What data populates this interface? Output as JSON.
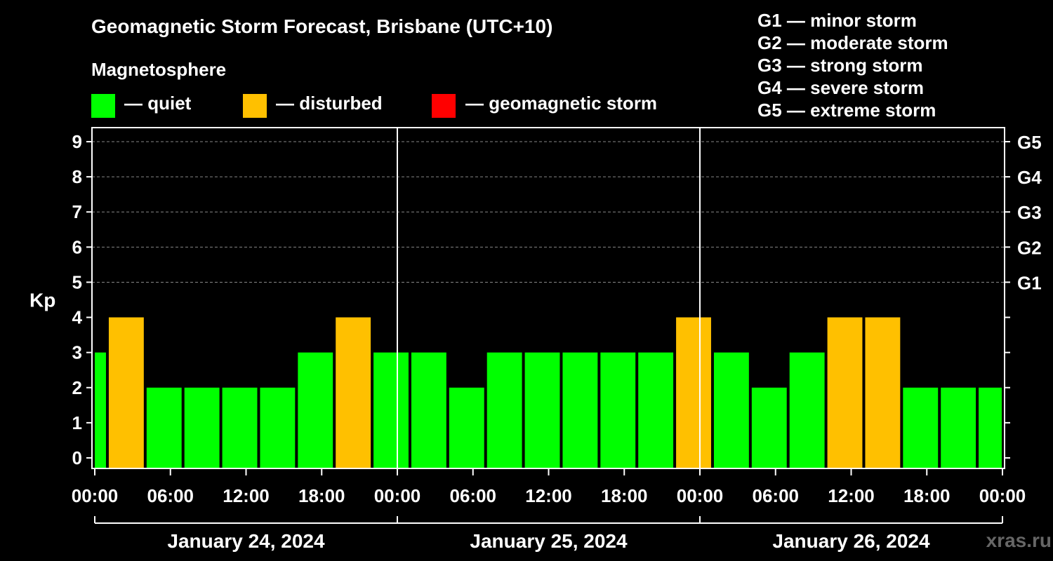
{
  "title": "Geomagnetic Storm Forecast, Brisbane (UTC+10)",
  "subtitle": "Magnetosphere",
  "legend": [
    {
      "label": "— quiet",
      "color": "#00ff00"
    },
    {
      "label": "— disturbed",
      "color": "#ffc000"
    },
    {
      "label": "— geomagnetic storm",
      "color": "#ff0000"
    }
  ],
  "storm_legend": [
    "G1 — minor storm",
    "G2 — moderate storm",
    "G3 — strong storm",
    "G4 — severe storm",
    "G5 — extreme storm"
  ],
  "watermark": "xras.ru",
  "colors": {
    "quiet": "#00ff00",
    "disturbed": "#ffc000",
    "storm": "#ff0000",
    "background": "#000000",
    "axis": "#ffffff",
    "grid": "#888888"
  },
  "chart_data": {
    "type": "bar",
    "title": "Geomagnetic Storm Forecast, Brisbane (UTC+10)",
    "ylabel": "Kp",
    "ylim": [
      -0.3,
      9.4
    ],
    "yticks": [
      0,
      1,
      2,
      3,
      4,
      5,
      6,
      7,
      8,
      9
    ],
    "right_axis_labels": [
      {
        "value": 5,
        "label": "G1"
      },
      {
        "value": 6,
        "label": "G2"
      },
      {
        "value": 7,
        "label": "G3"
      },
      {
        "value": 8,
        "label": "G4"
      },
      {
        "value": 9,
        "label": "G5"
      }
    ],
    "grid": "dashed horizontal at Kp 5-9",
    "x_range_hours": [
      0,
      72
    ],
    "x_ticks": [
      {
        "hour": 0,
        "label": "00:00"
      },
      {
        "hour": 6,
        "label": "06:00"
      },
      {
        "hour": 12,
        "label": "12:00"
      },
      {
        "hour": 18,
        "label": "18:00"
      },
      {
        "hour": 24,
        "label": "00:00"
      },
      {
        "hour": 30,
        "label": "06:00"
      },
      {
        "hour": 36,
        "label": "12:00"
      },
      {
        "hour": 42,
        "label": "18:00"
      },
      {
        "hour": 48,
        "label": "00:00"
      },
      {
        "hour": 54,
        "label": "06:00"
      },
      {
        "hour": 60,
        "label": "12:00"
      },
      {
        "hour": 66,
        "label": "18:00"
      },
      {
        "hour": 72,
        "label": "00:00"
      }
    ],
    "days": [
      {
        "label": "January 24, 2024",
        "start_hour": 0,
        "end_hour": 24
      },
      {
        "label": "January 25, 2024",
        "start_hour": 24,
        "end_hour": 48
      },
      {
        "label": "January 26, 2024",
        "start_hour": 48,
        "end_hour": 72
      }
    ],
    "bars": [
      {
        "start_hour": -2,
        "end_hour": 1,
        "kp": 3,
        "level": "quiet"
      },
      {
        "start_hour": 1,
        "end_hour": 4,
        "kp": 4,
        "level": "disturbed"
      },
      {
        "start_hour": 4,
        "end_hour": 7,
        "kp": 2,
        "level": "quiet"
      },
      {
        "start_hour": 7,
        "end_hour": 10,
        "kp": 2,
        "level": "quiet"
      },
      {
        "start_hour": 10,
        "end_hour": 13,
        "kp": 2,
        "level": "quiet"
      },
      {
        "start_hour": 13,
        "end_hour": 16,
        "kp": 2,
        "level": "quiet"
      },
      {
        "start_hour": 16,
        "end_hour": 19,
        "kp": 3,
        "level": "quiet"
      },
      {
        "start_hour": 19,
        "end_hour": 22,
        "kp": 4,
        "level": "disturbed"
      },
      {
        "start_hour": 22,
        "end_hour": 25,
        "kp": 3,
        "level": "quiet"
      },
      {
        "start_hour": 25,
        "end_hour": 28,
        "kp": 3,
        "level": "quiet"
      },
      {
        "start_hour": 28,
        "end_hour": 31,
        "kp": 2,
        "level": "quiet"
      },
      {
        "start_hour": 31,
        "end_hour": 34,
        "kp": 3,
        "level": "quiet"
      },
      {
        "start_hour": 34,
        "end_hour": 37,
        "kp": 3,
        "level": "quiet"
      },
      {
        "start_hour": 37,
        "end_hour": 40,
        "kp": 3,
        "level": "quiet"
      },
      {
        "start_hour": 40,
        "end_hour": 43,
        "kp": 3,
        "level": "quiet"
      },
      {
        "start_hour": 43,
        "end_hour": 46,
        "kp": 3,
        "level": "quiet"
      },
      {
        "start_hour": 46,
        "end_hour": 49,
        "kp": 4,
        "level": "disturbed"
      },
      {
        "start_hour": 49,
        "end_hour": 52,
        "kp": 3,
        "level": "quiet"
      },
      {
        "start_hour": 52,
        "end_hour": 55,
        "kp": 2,
        "level": "quiet"
      },
      {
        "start_hour": 55,
        "end_hour": 58,
        "kp": 3,
        "level": "quiet"
      },
      {
        "start_hour": 58,
        "end_hour": 61,
        "kp": 4,
        "level": "disturbed"
      },
      {
        "start_hour": 61,
        "end_hour": 64,
        "kp": 4,
        "level": "disturbed"
      },
      {
        "start_hour": 64,
        "end_hour": 67,
        "kp": 2,
        "level": "quiet"
      },
      {
        "start_hour": 67,
        "end_hour": 70,
        "kp": 2,
        "level": "quiet"
      },
      {
        "start_hour": 70,
        "end_hour": 73,
        "kp": 2,
        "level": "quiet"
      }
    ]
  }
}
